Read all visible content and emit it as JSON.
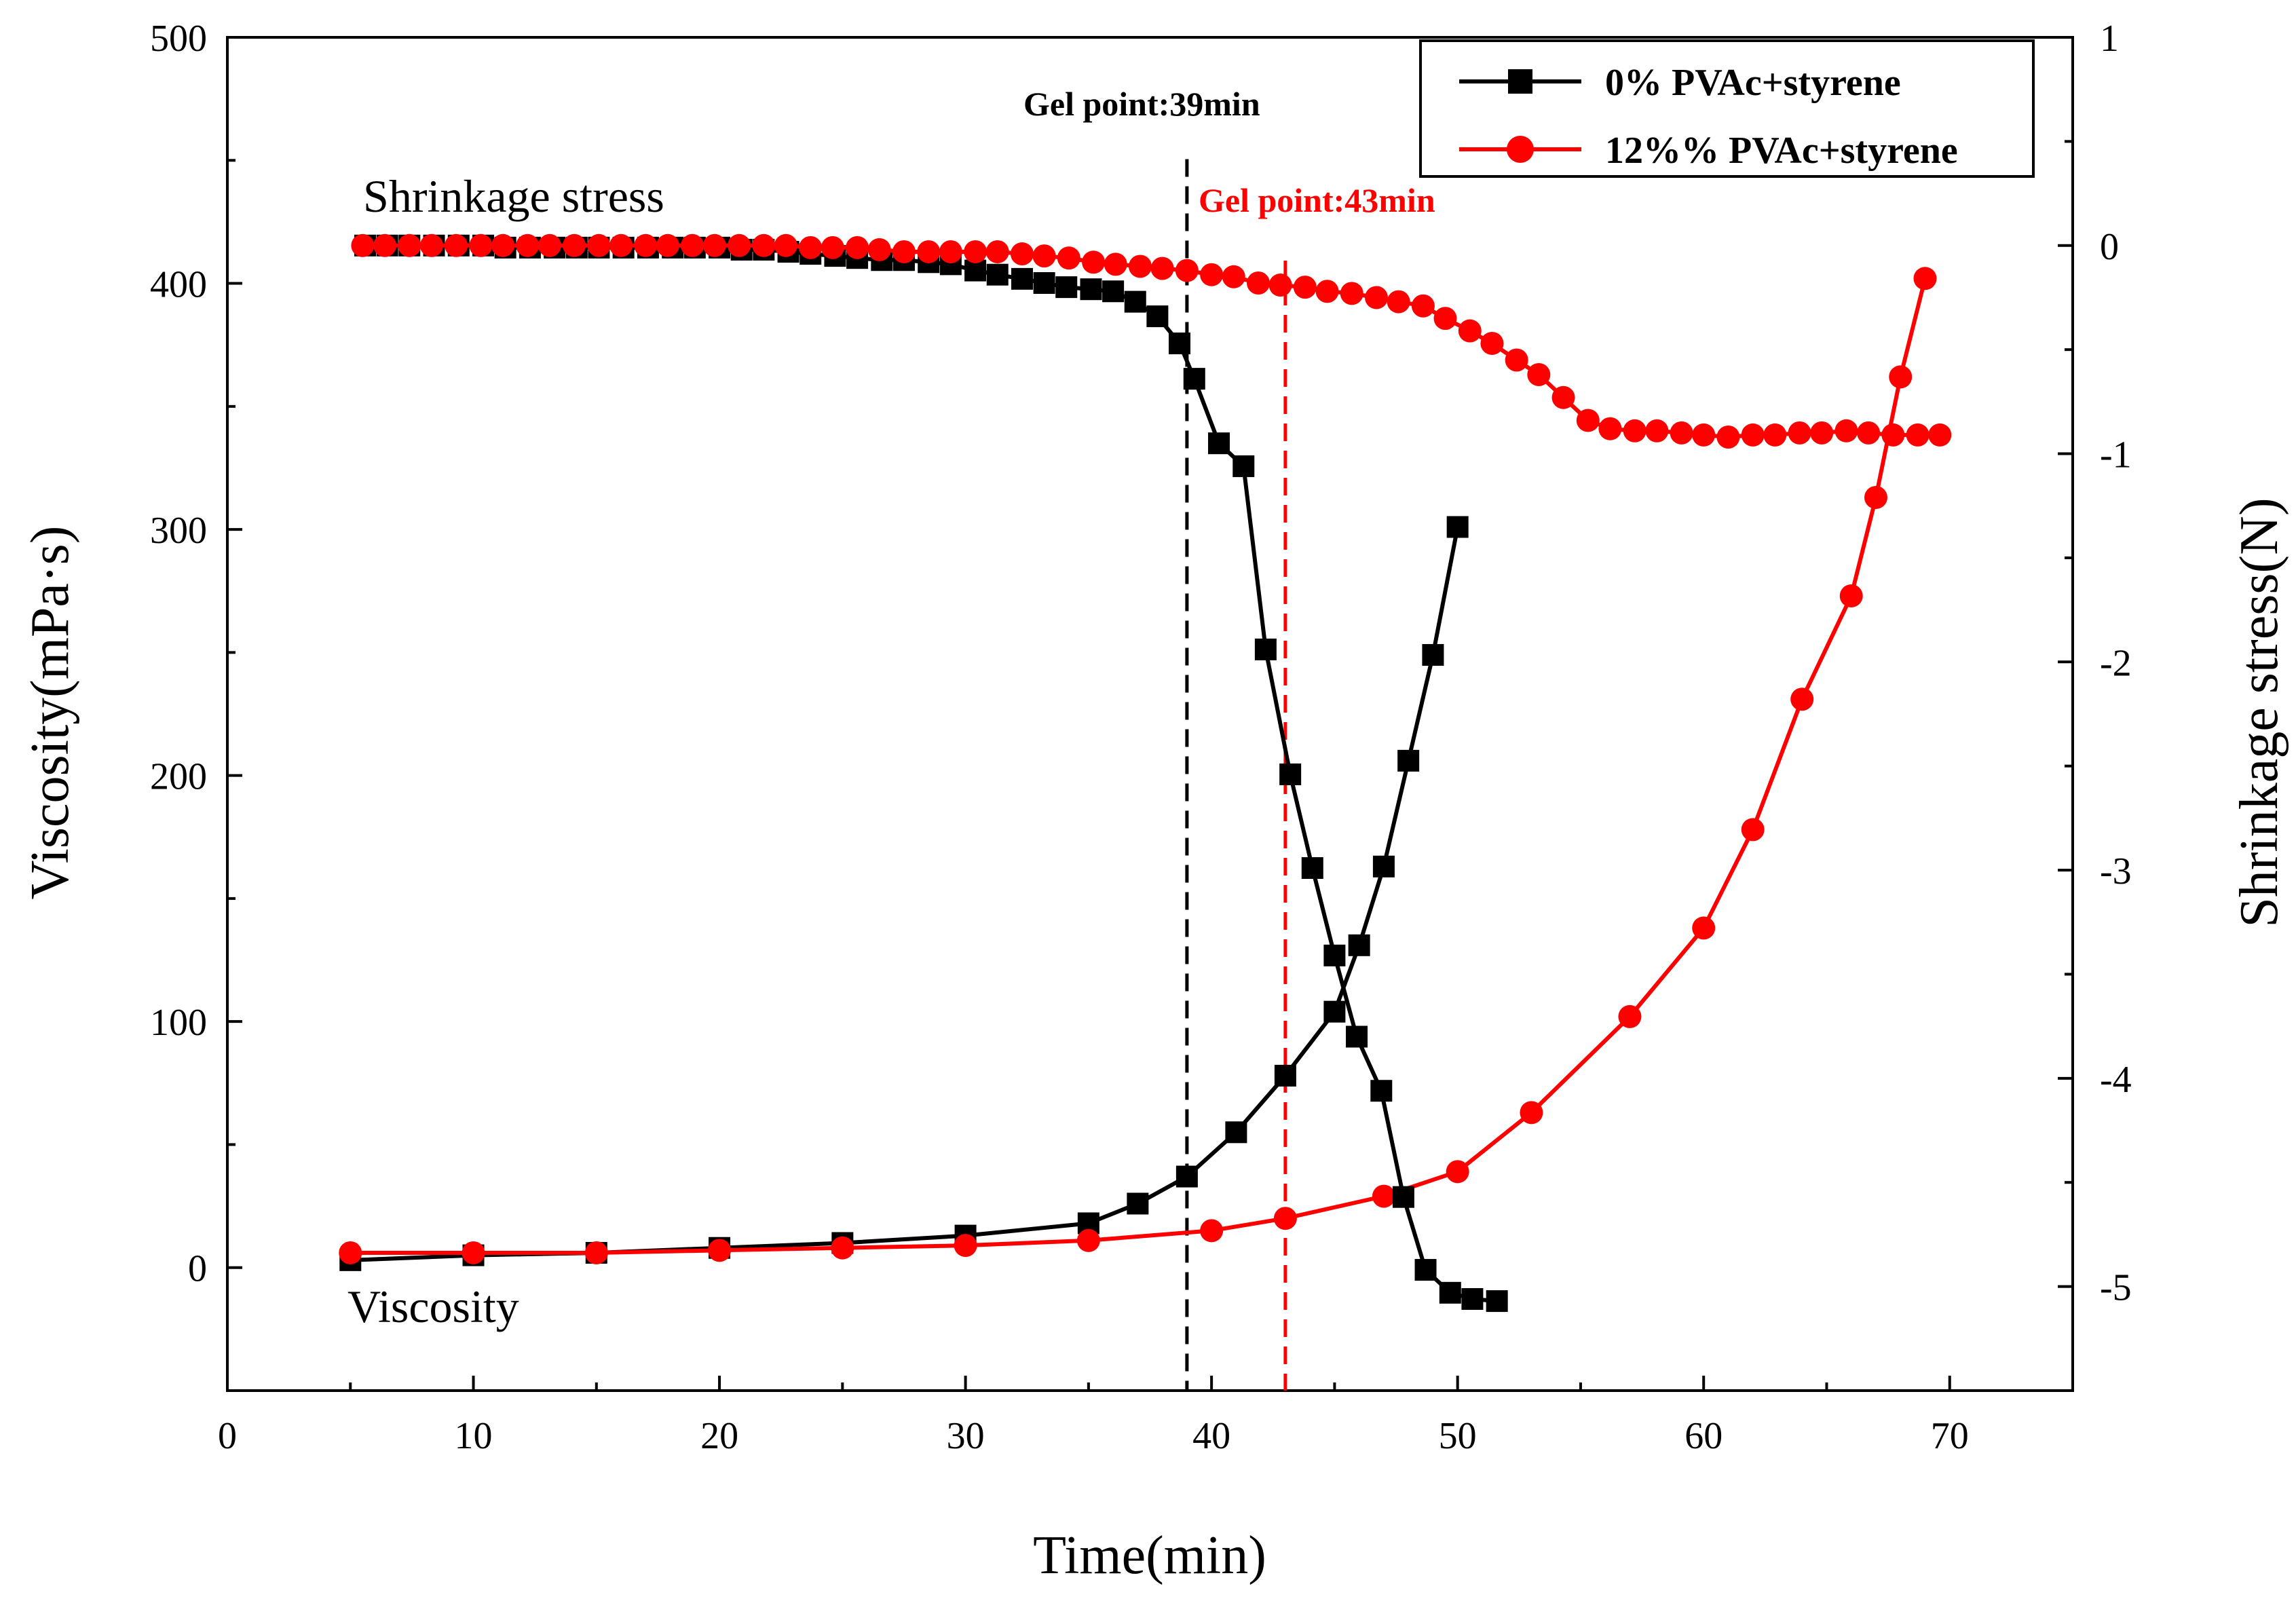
{
  "chart_data": {
    "type": "line",
    "xlabel": "Time(min)",
    "ylabel_left": "Viscosity(mPa·s)",
    "ylabel_right": "Shrinkage stress(N)",
    "xlim": [
      0,
      75
    ],
    "xticks": [
      0,
      10,
      20,
      30,
      40,
      50,
      60,
      70
    ],
    "ylim_left": [
      -50,
      500
    ],
    "yticks_left": [
      0,
      100,
      200,
      300,
      400,
      500
    ],
    "ylim_right": [
      -5.5,
      1
    ],
    "yticks_right": [
      -5,
      -4,
      -3,
      -2,
      -1,
      0,
      1
    ],
    "colors": {
      "black": "#000000",
      "red": "#ff0000"
    },
    "legend": {
      "position": "top-right",
      "entries": [
        {
          "label": "0% PVAc+styrene",
          "color": "#000000",
          "marker": "square"
        },
        {
          "label": "12%% PVAc+styrene",
          "color": "#ff0000",
          "marker": "circle"
        }
      ]
    },
    "annotations": {
      "shrinkage_label": "Shrinkage stress",
      "viscosity_label": "Viscosity",
      "gel_points": [
        {
          "label": "Gel point:39min",
          "x": 39,
          "color": "#000000"
        },
        {
          "label": "Gel point:43min",
          "x": 43,
          "color": "#ff0000"
        }
      ]
    },
    "series": [
      {
        "name": "0% PVAc+styrene viscosity",
        "axis": "left",
        "color": "#000000",
        "marker": "square",
        "x": [
          5,
          10,
          15,
          20,
          25,
          30,
          35,
          37,
          39,
          41,
          43,
          45,
          46,
          47,
          48,
          49,
          50
        ],
        "y": [
          3,
          5,
          6,
          8,
          10,
          13,
          18,
          26,
          37,
          55,
          78,
          104,
          131,
          163,
          206,
          249,
          301
        ]
      },
      {
        "name": "12%% PVAc+styrene viscosity",
        "axis": "left",
        "color": "#ff0000",
        "marker": "circle",
        "x": [
          5,
          10,
          15,
          20,
          25,
          30,
          35,
          40,
          43,
          47,
          50,
          53,
          57,
          60,
          62,
          64,
          66,
          67,
          68,
          69
        ],
        "y": [
          6,
          6,
          6,
          7,
          8,
          9,
          11,
          15,
          20,
          29,
          39,
          63,
          102,
          138,
          178,
          231,
          273,
          313,
          362,
          402
        ]
      },
      {
        "name": "0% PVAc+styrene shrinkage stress",
        "axis": "right",
        "color": "#000000",
        "marker": "square",
        "x": [
          5.6,
          6.5,
          7.4,
          8.4,
          9.4,
          10.4,
          11.3,
          12.3,
          13.3,
          14.2,
          15.1,
          16.1,
          17.1,
          18.1,
          19,
          20,
          20.9,
          21.8,
          22.8,
          23.7,
          24.7,
          25.6,
          26.6,
          27.5,
          28.5,
          29.4,
          30.4,
          31.3,
          32.3,
          33.2,
          34.1,
          35.1,
          36,
          36.9,
          37.8,
          38.7,
          39.3,
          40.3,
          41.3,
          42.2,
          43.2,
          44.1,
          45,
          45.9,
          46.9,
          47.8,
          48.7,
          49.7,
          50.6,
          51.6
        ],
        "y": [
          0,
          0,
          0,
          0,
          0,
          0,
          -0.01,
          -0.01,
          -0.01,
          -0.01,
          -0.01,
          -0.01,
          -0.01,
          -0.01,
          -0.01,
          -0.01,
          -0.02,
          -0.02,
          -0.03,
          -0.04,
          -0.05,
          -0.06,
          -0.07,
          -0.07,
          -0.08,
          -0.09,
          -0.12,
          -0.14,
          -0.16,
          -0.18,
          -0.2,
          -0.21,
          -0.22,
          -0.27,
          -0.34,
          -0.47,
          -0.64,
          -0.95,
          -1.06,
          -1.94,
          -2.54,
          -2.99,
          -3.41,
          -3.8,
          -4.06,
          -4.57,
          -4.92,
          -5.03,
          -5.06,
          -5.07
        ]
      },
      {
        "name": "12%% PVAc+styrene shrinkage stress",
        "axis": "right",
        "color": "#ff0000",
        "marker": "circle",
        "x": [
          5.5,
          6.4,
          7.4,
          8.3,
          9.3,
          10.3,
          11.2,
          12.2,
          13.1,
          14.1,
          15.1,
          16,
          17,
          17.9,
          18.9,
          19.8,
          20.8,
          21.8,
          22.7,
          23.7,
          24.6,
          25.6,
          26.5,
          27.5,
          28.5,
          29.4,
          30.4,
          31.3,
          32.3,
          33.2,
          34.2,
          35.2,
          36.1,
          37.1,
          38,
          39,
          40,
          40.9,
          41.9,
          42.8,
          43.8,
          44.7,
          45.7,
          46.7,
          47.6,
          48.6,
          49.5,
          50.5,
          51.4,
          52.4,
          53.3,
          54.3,
          55.3,
          56.2,
          57.2,
          58.1,
          59.1,
          60,
          61,
          62,
          62.9,
          63.9,
          64.8,
          65.8,
          66.7,
          67.7,
          68.7,
          69.6
        ],
        "y": [
          0,
          0,
          0,
          0,
          0,
          0,
          0,
          0,
          0,
          0,
          0,
          0,
          0,
          0,
          0,
          0,
          0,
          0,
          0,
          -0.01,
          -0.01,
          -0.01,
          -0.02,
          -0.03,
          -0.03,
          -0.03,
          -0.03,
          -0.03,
          -0.04,
          -0.05,
          -0.06,
          -0.08,
          -0.09,
          -0.1,
          -0.11,
          -0.12,
          -0.14,
          -0.15,
          -0.18,
          -0.19,
          -0.2,
          -0.22,
          -0.23,
          -0.25,
          -0.27,
          -0.29,
          -0.35,
          -0.41,
          -0.47,
          -0.55,
          -0.62,
          -0.73,
          -0.84,
          -0.88,
          -0.89,
          -0.89,
          -0.9,
          -0.91,
          -0.92,
          -0.91,
          -0.91,
          -0.9,
          -0.9,
          -0.89,
          -0.9,
          -0.91,
          -0.91,
          -0.91
        ]
      }
    ]
  }
}
